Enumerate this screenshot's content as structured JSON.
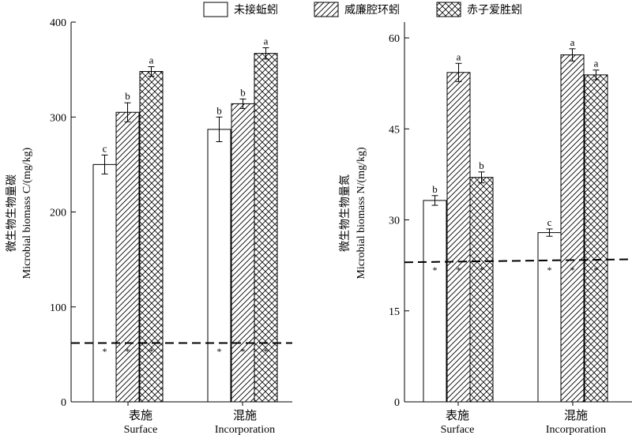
{
  "legend": {
    "items": [
      {
        "label": "未接蚯蚓",
        "pattern": "none"
      },
      {
        "label": "威廉腔环蚓",
        "pattern": "hatch"
      },
      {
        "label": "赤子爱胜蚓",
        "pattern": "crosshatch"
      }
    ]
  },
  "colors": {
    "ink": "#000000",
    "background": "#ffffff"
  },
  "chart_data": [
    {
      "type": "bar",
      "ylabel_zh": "微生物生物量碳",
      "ylabel_en": "Microbial biomass C/(mg/kg)",
      "ylim": [
        0,
        400
      ],
      "yticks": [
        0,
        100,
        200,
        300,
        400
      ],
      "categories": [
        {
          "zh": "表施",
          "en": "Surface"
        },
        {
          "zh": "混施",
          "en": "Incorporation"
        }
      ],
      "series": [
        {
          "name": "未接蚯蚓",
          "values": [
            250,
            287
          ],
          "errors": [
            10,
            13
          ],
          "letters": [
            "c",
            "b"
          ]
        },
        {
          "name": "威廉腔环蚓",
          "values": [
            305,
            314
          ],
          "errors": [
            10,
            5
          ],
          "letters": [
            "b",
            "b"
          ]
        },
        {
          "name": "赤子爱胜蚓",
          "values": [
            348,
            367
          ],
          "errors": [
            5,
            6
          ],
          "letters": [
            "a",
            "a"
          ]
        }
      ],
      "reference_line": 62,
      "star_label": "*",
      "grid": false
    },
    {
      "type": "bar",
      "ylabel_zh": "微生物生物量氮",
      "ylabel_en": "Microbial biomass N/(mg/kg)",
      "ylim": [
        0,
        62
      ],
      "yticks": [
        0,
        15,
        30,
        45,
        60
      ],
      "categories": [
        {
          "zh": "表施",
          "en": "Surface"
        },
        {
          "zh": "混施",
          "en": "Incorporation"
        }
      ],
      "series": [
        {
          "name": "未接蚯蚓",
          "values": [
            33.2,
            27.9
          ],
          "errors": [
            0.8,
            0.6
          ],
          "letters": [
            "b",
            "c"
          ]
        },
        {
          "name": "威廉腔环蚓",
          "values": [
            54.3,
            57.2
          ],
          "errors": [
            1.5,
            1.0
          ],
          "letters": [
            "a",
            "a"
          ]
        },
        {
          "name": "赤子爱胜蚓",
          "values": [
            37.0,
            53.9
          ],
          "errors": [
            0.9,
            0.8
          ],
          "letters": [
            "b",
            "a"
          ]
        }
      ],
      "reference_line": [
        23.0,
        23.5
      ],
      "star_label": "*",
      "grid": false
    }
  ]
}
